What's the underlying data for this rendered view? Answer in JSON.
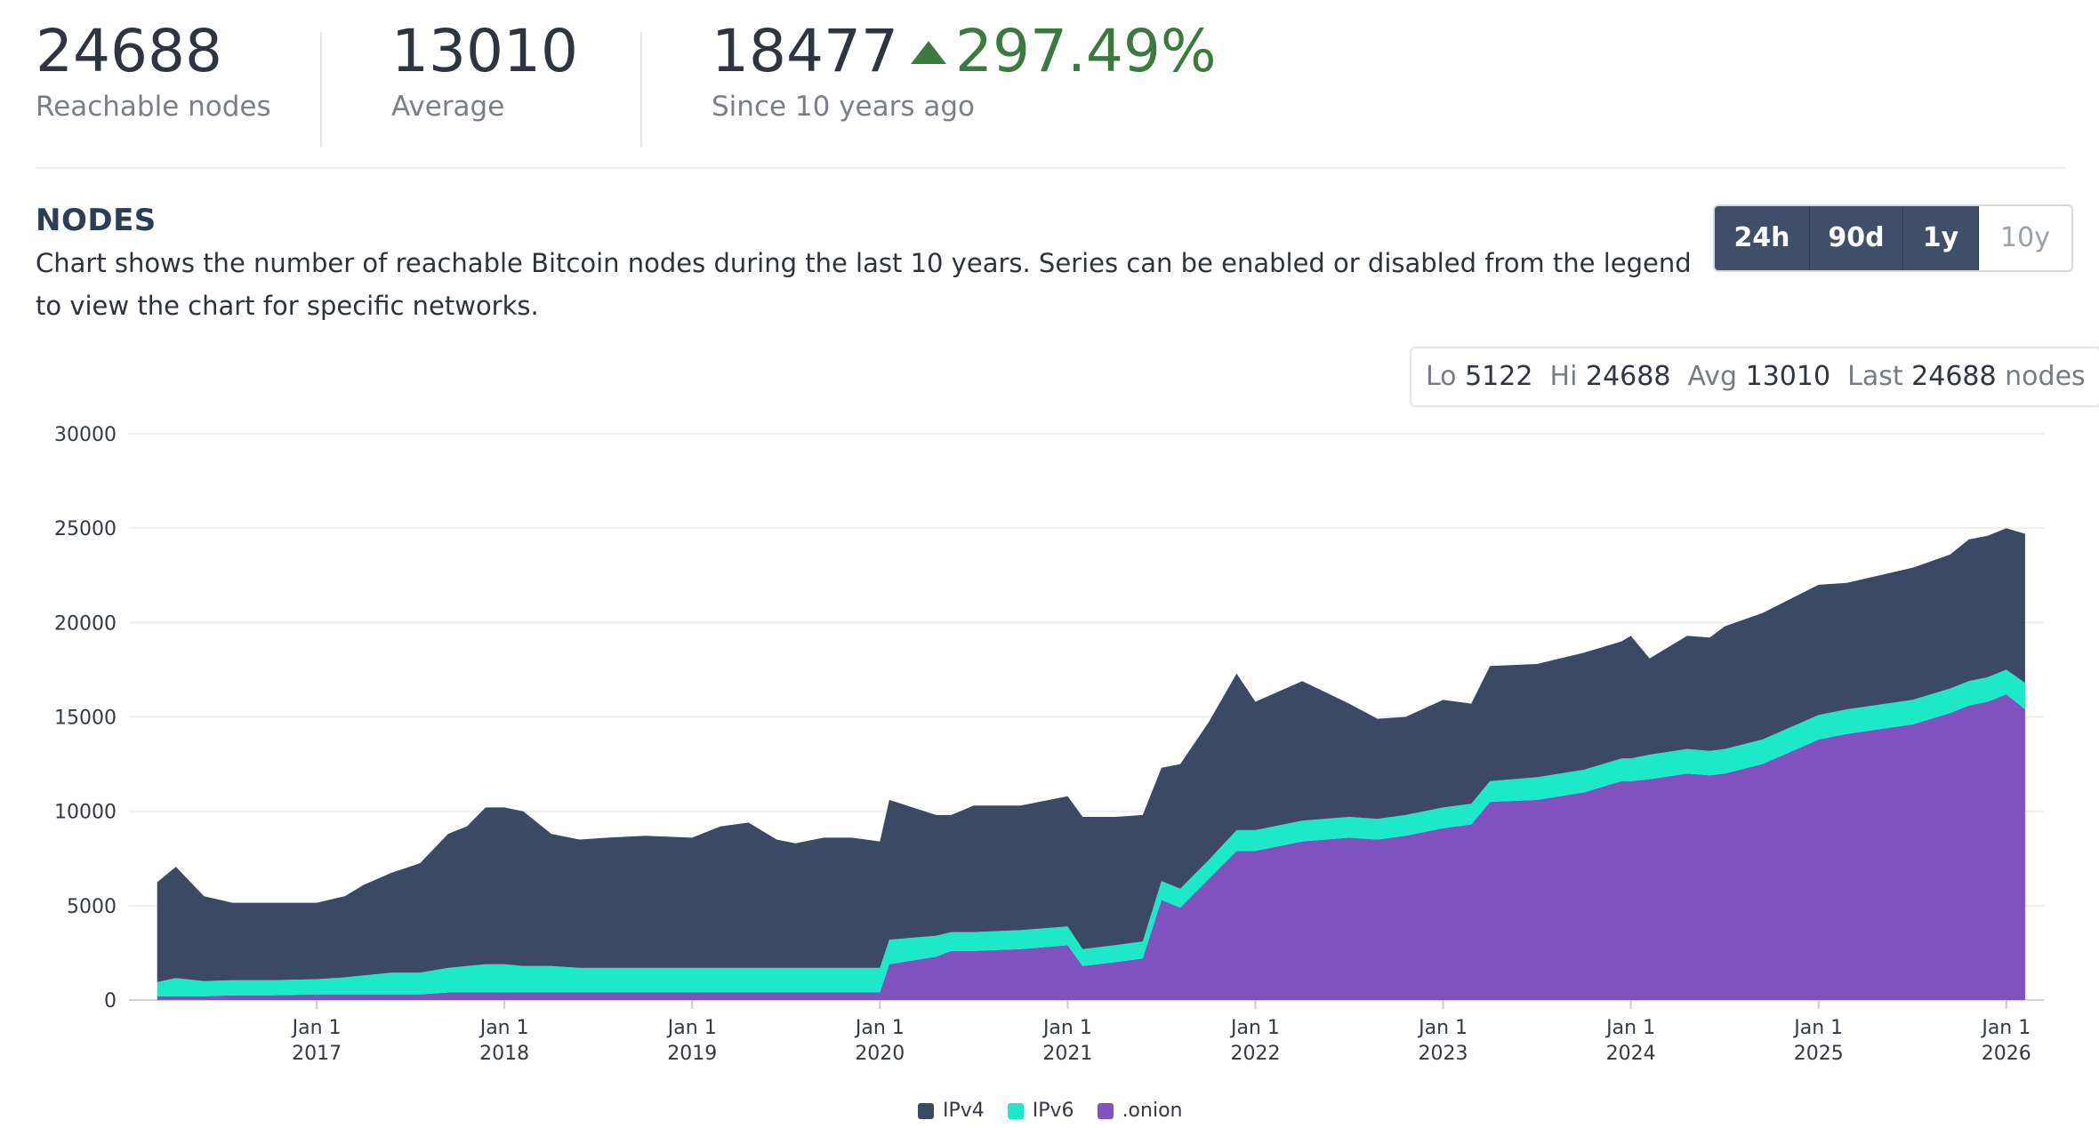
{
  "stats": {
    "reachable": {
      "value": "24688",
      "label": "Reachable nodes"
    },
    "average": {
      "value": "13010",
      "label": "Average"
    },
    "since": {
      "value": "18477",
      "change": "297.49%",
      "label": "Since 10 years ago"
    }
  },
  "section": {
    "title": "NODES",
    "description": "Chart shows the number of reachable Bitcoin nodes during the last 10 years. Series can be enabled or disabled from the legend to view the chart for specific networks."
  },
  "range_buttons": [
    "24h",
    "90d",
    "1y",
    "10y"
  ],
  "summary": {
    "lo_label": "Lo",
    "lo": "5122",
    "hi_label": "Hi",
    "hi": "24688",
    "avg_label": "Avg",
    "avg": "13010",
    "last_label": "Last",
    "last": "24688",
    "unit": "nodes"
  },
  "colors": {
    "ipv4": "#3b4965",
    "ipv6": "#1de9c8",
    "onion": "#7f52bf",
    "up": "#3b7a3f"
  },
  "chart_data": {
    "type": "area",
    "stacked": true,
    "title": "NODES",
    "ylim": [
      0,
      30000
    ],
    "y_ticks": [
      0,
      5000,
      10000,
      15000,
      20000,
      25000,
      30000
    ],
    "x_ticks": [
      {
        "year": 2017,
        "line1": "Jan 1",
        "line2": "2017"
      },
      {
        "year": 2018,
        "line1": "Jan 1",
        "line2": "2018"
      },
      {
        "year": 2019,
        "line1": "Jan 1",
        "line2": "2019"
      },
      {
        "year": 2020,
        "line1": "Jan 1",
        "line2": "2020"
      },
      {
        "year": 2021,
        "line1": "Jan 1",
        "line2": "2021"
      },
      {
        "year": 2022,
        "line1": "Jan 1",
        "line2": "2022"
      },
      {
        "year": 2023,
        "line1": "Jan 1",
        "line2": "2023"
      },
      {
        "year": 2024,
        "line1": "Jan 1",
        "line2": "2024"
      },
      {
        "year": 2025,
        "line1": "Jan 1",
        "line2": "2025"
      },
      {
        "year": 2026,
        "line1": "Jan 1",
        "line2": "2026"
      }
    ],
    "x": [
      2016.15,
      2016.25,
      2016.4,
      2016.55,
      2016.75,
      2017.0,
      2017.15,
      2017.25,
      2017.4,
      2017.55,
      2017.7,
      2017.8,
      2017.9,
      2018.0,
      2018.1,
      2018.25,
      2018.4,
      2018.55,
      2018.75,
      2019.0,
      2019.15,
      2019.3,
      2019.45,
      2019.55,
      2019.7,
      2019.85,
      2020.0,
      2020.05,
      2020.3,
      2020.38,
      2020.5,
      2020.75,
      2021.0,
      2021.08,
      2021.25,
      2021.4,
      2021.5,
      2021.6,
      2021.75,
      2021.9,
      2022.0,
      2022.25,
      2022.5,
      2022.65,
      2022.8,
      2023.0,
      2023.15,
      2023.25,
      2023.5,
      2023.75,
      2023.95,
      2024.0,
      2024.1,
      2024.3,
      2024.42,
      2024.5,
      2024.7,
      2025.0,
      2025.15,
      2025.5,
      2025.7,
      2025.8,
      2025.9,
      2026.0,
      2026.1
    ],
    "series": [
      {
        "name": "IPv4",
        "color": "#3b4965",
        "values": [
          5290,
          5900,
          4500,
          4100,
          4100,
          4050,
          4300,
          4800,
          5300,
          5800,
          7100,
          7400,
          8300,
          8300,
          8200,
          7000,
          6800,
          6900,
          7000,
          6900,
          7500,
          7700,
          6800,
          6600,
          6900,
          6900,
          6700,
          7400,
          6400,
          6200,
          6700,
          6600,
          6900,
          7000,
          6800,
          6700,
          6000,
          6600,
          7300,
          8300,
          6800,
          7400,
          6000,
          5300,
          5200,
          5700,
          5300,
          6100,
          6000,
          6200,
          6200,
          6500,
          5100,
          6000,
          6000,
          6500,
          6700,
          6900,
          6700,
          7000,
          7100,
          7500,
          7500,
          7500,
          7900
        ]
      },
      {
        "name": "IPv6",
        "color": "#1de9c8",
        "values": [
          750,
          960,
          800,
          800,
          800,
          800,
          900,
          1000,
          1150,
          1150,
          1300,
          1400,
          1500,
          1500,
          1400,
          1400,
          1300,
          1300,
          1300,
          1300,
          1300,
          1300,
          1300,
          1300,
          1300,
          1300,
          1300,
          1300,
          1100,
          1000,
          1000,
          1000,
          1000,
          900,
          900,
          900,
          1000,
          1000,
          1000,
          1100,
          1100,
          1100,
          1100,
          1100,
          1100,
          1100,
          1100,
          1100,
          1200,
          1200,
          1200,
          1200,
          1300,
          1300,
          1300,
          1300,
          1300,
          1300,
          1300,
          1300,
          1300,
          1300,
          1300,
          1300,
          1400
        ]
      },
      {
        "name": ".onion",
        "color": "#7f52bf",
        "values": [
          200,
          200,
          200,
          250,
          250,
          300,
          300,
          300,
          300,
          300,
          400,
          400,
          400,
          400,
          400,
          400,
          400,
          400,
          400,
          400,
          400,
          400,
          400,
          400,
          400,
          400,
          400,
          1900,
          2300,
          2600,
          2600,
          2700,
          2900,
          1800,
          2000,
          2200,
          5300,
          4900,
          6400,
          7900,
          7900,
          8400,
          8600,
          8500,
          8700,
          9100,
          9300,
          10500,
          10600,
          11000,
          11600,
          11600,
          11700,
          12000,
          11900,
          12000,
          12500,
          13800,
          14100,
          14600,
          15200,
          15600,
          15800,
          16200,
          15400
        ]
      }
    ],
    "legend": [
      "IPv4",
      "IPv6",
      ".onion"
    ]
  }
}
